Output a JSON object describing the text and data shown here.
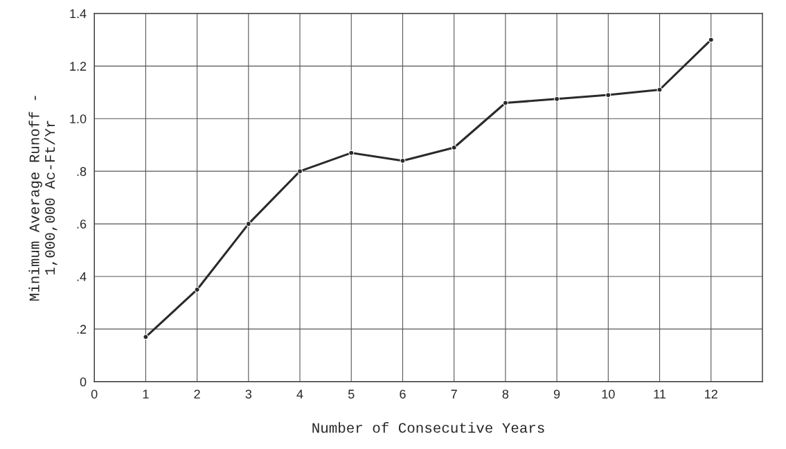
{
  "chart_data": {
    "type": "line",
    "xlabel": "Number of Consecutive Years",
    "ylabel": "Minimum Average Runoff -\n1,000,000 Ac-Ft/Yr",
    "x": [
      1,
      2,
      3,
      4,
      5,
      6,
      7,
      8,
      9,
      10,
      11,
      12
    ],
    "series": [
      {
        "color": "#2a2a2a",
        "values": [
          0.17,
          0.35,
          0.6,
          0.8,
          0.87,
          0.84,
          0.89,
          1.06,
          1.075,
          1.09,
          1.11,
          1.3
        ]
      }
    ],
    "xlim": [
      0,
      13
    ],
    "xticks": [
      0,
      1,
      2,
      3,
      4,
      5,
      6,
      7,
      8,
      9,
      10,
      11,
      12
    ],
    "ylim": [
      0,
      1.4
    ],
    "yticks": [
      0,
      {
        "value": 0.2,
        "label": ".2"
      },
      {
        "value": 0.4,
        "label": ".4"
      },
      {
        "value": 0.6,
        "label": ".6"
      },
      {
        "value": 0.8,
        "label": ".8"
      },
      {
        "value": 1.0,
        "label": "1.0"
      },
      {
        "value": 1.2,
        "label": "1.2"
      },
      {
        "value": 1.4,
        "label": "1.4"
      }
    ],
    "grid": true,
    "marker": "circle",
    "line_style": "solid"
  }
}
